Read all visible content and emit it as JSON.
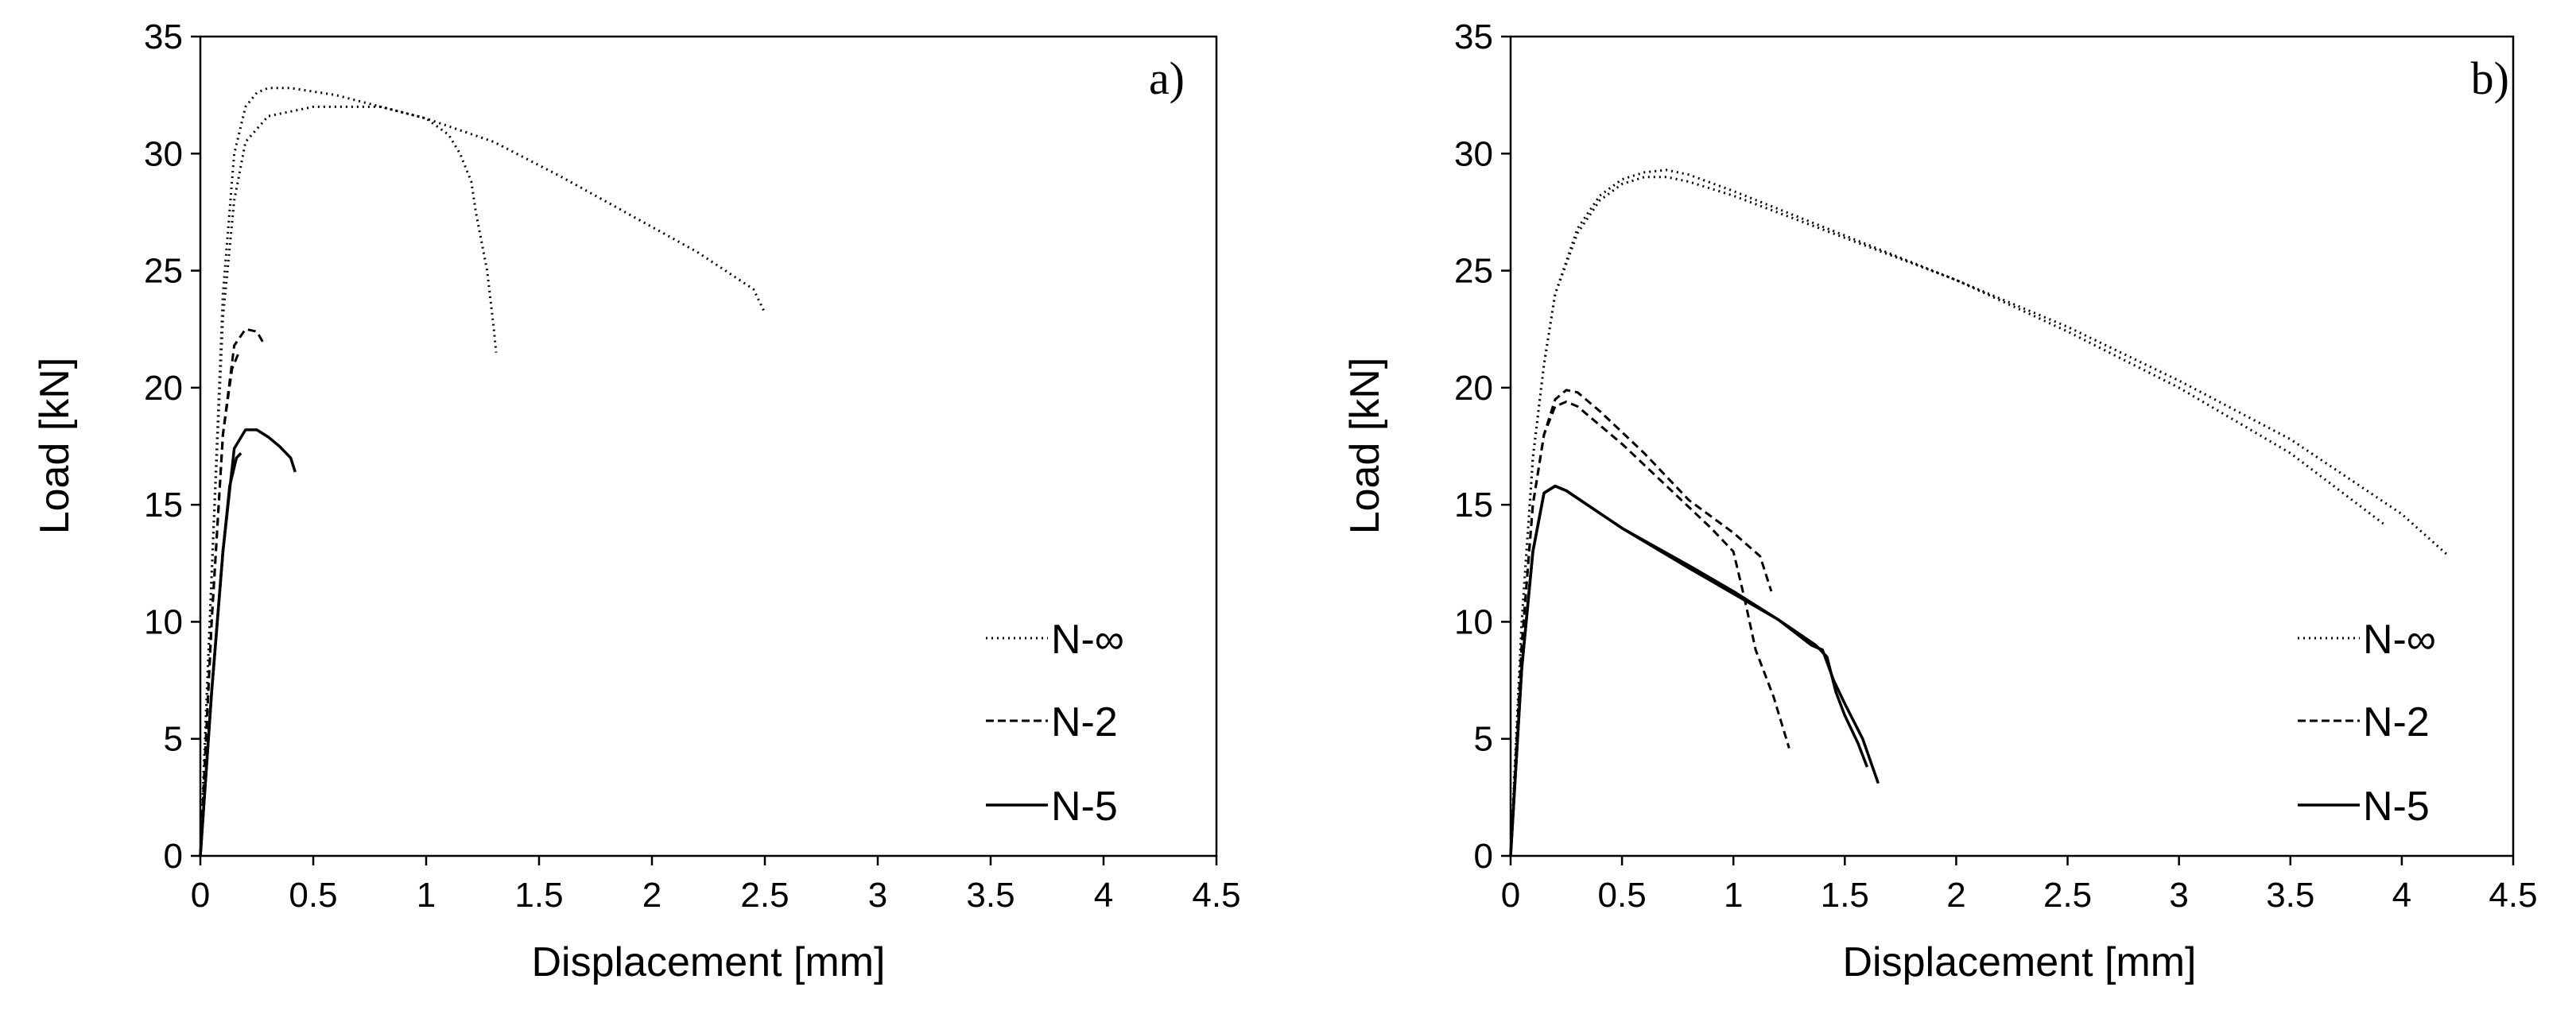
{
  "chart_data": [
    {
      "type": "line",
      "panel_label": "a)",
      "xlabel": "Displacement [mm]",
      "ylabel": "Load [kN]",
      "xlim": [
        0,
        4.5
      ],
      "ylim": [
        0,
        35
      ],
      "xticks": [
        "0",
        "0.5",
        "1",
        "1.5",
        "2",
        "2.5",
        "3",
        "3.5",
        "4",
        "4.5"
      ],
      "yticks": [
        "0",
        "5",
        "10",
        "15",
        "20",
        "25",
        "30",
        "35"
      ],
      "grid": false,
      "legend_position": "bottom-right",
      "legend": [
        {
          "label": "N-∞",
          "style": "dotted"
        },
        {
          "label": "N-2",
          "style": "dashed"
        },
        {
          "label": "N-5",
          "style": "solid"
        }
      ],
      "series": [
        {
          "name": "N-∞",
          "style": "dotted",
          "x": [
            0,
            0.05,
            0.1,
            0.15,
            0.2,
            0.25,
            0.3,
            0.4,
            0.6,
            0.8,
            1.0,
            1.3,
            1.6,
            1.9,
            2.2,
            2.45,
            2.5
          ],
          "y": [
            0,
            12,
            24,
            30,
            32,
            32.6,
            32.8,
            32.8,
            32.5,
            32.0,
            31.5,
            30.5,
            29.0,
            27.4,
            25.8,
            24.2,
            23.2
          ]
        },
        {
          "name": "N-∞",
          "style": "dotted",
          "x": [
            0,
            0.05,
            0.1,
            0.15,
            0.2,
            0.3,
            0.5,
            0.8,
            1.0,
            1.1,
            1.15,
            1.2,
            1.22,
            1.25,
            1.27,
            1.3,
            1.31
          ],
          "y": [
            0,
            12,
            23,
            28,
            30.5,
            31.6,
            32.0,
            32.0,
            31.5,
            30.8,
            30.0,
            28.8,
            27.5,
            26,
            25,
            22.5,
            21.5
          ]
        },
        {
          "name": "N-2",
          "style": "dashed",
          "x": [
            0,
            0.05,
            0.1,
            0.15,
            0.2,
            0.25,
            0.28
          ],
          "y": [
            0,
            10,
            18,
            21.8,
            22.5,
            22.4,
            21.9
          ]
        },
        {
          "name": "N-2",
          "style": "dashed",
          "x": [
            0,
            0.05,
            0.1,
            0.14,
            0.17
          ],
          "y": [
            0,
            10,
            18,
            20.8,
            21.5
          ]
        },
        {
          "name": "N-5",
          "style": "solid",
          "x": [
            0,
            0.05,
            0.1,
            0.15,
            0.2,
            0.25,
            0.3,
            0.35,
            0.4,
            0.42
          ],
          "y": [
            0,
            7,
            13,
            17.4,
            18.2,
            18.2,
            17.9,
            17.5,
            17.0,
            16.4
          ]
        },
        {
          "name": "N-5",
          "style": "solid",
          "x": [
            0,
            0.05,
            0.1,
            0.13,
            0.16,
            0.18
          ],
          "y": [
            0,
            7,
            13,
            15.8,
            17.0,
            17.2
          ]
        }
      ]
    },
    {
      "type": "line",
      "panel_label": "b)",
      "xlabel": "Displacement [mm]",
      "ylabel": "Load [kN]",
      "xlim": [
        0,
        4.5
      ],
      "ylim": [
        0,
        35
      ],
      "xticks": [
        "0",
        "0.5",
        "1",
        "1.5",
        "2",
        "2.5",
        "3",
        "3.5",
        "4",
        "4.5"
      ],
      "yticks": [
        "0",
        "5",
        "10",
        "15",
        "20",
        "25",
        "30",
        "35"
      ],
      "grid": false,
      "legend_position": "bottom-right",
      "legend": [
        {
          "label": "N-∞",
          "style": "dotted"
        },
        {
          "label": "N-2",
          "style": "dashed"
        },
        {
          "label": "N-5",
          "style": "solid"
        }
      ],
      "series": [
        {
          "name": "N-∞",
          "style": "dotted",
          "x": [
            0,
            0.05,
            0.1,
            0.15,
            0.2,
            0.3,
            0.4,
            0.5,
            0.6,
            0.7,
            0.8,
            1.0,
            1.5,
            2.0,
            2.5,
            3.0,
            3.5,
            4.0,
            4.2
          ],
          "y": [
            0,
            10,
            17,
            21,
            24,
            26.8,
            28.2,
            28.9,
            29.2,
            29.3,
            29.1,
            28.4,
            26.5,
            24.6,
            22.6,
            20.3,
            17.8,
            14.6,
            12.9
          ]
        },
        {
          "name": "N-∞",
          "style": "dotted",
          "x": [
            0,
            0.05,
            0.1,
            0.15,
            0.2,
            0.3,
            0.4,
            0.5,
            0.6,
            0.7,
            0.8,
            1.0,
            1.5,
            2.0,
            2.5,
            3.0,
            3.5,
            3.93
          ],
          "y": [
            0,
            10,
            17,
            21,
            24,
            26.6,
            28.0,
            28.7,
            29.0,
            29.0,
            28.8,
            28.2,
            26.4,
            24.6,
            22.4,
            20.0,
            17.2,
            14.1
          ]
        },
        {
          "name": "N-2",
          "style": "dashed",
          "x": [
            0,
            0.05,
            0.1,
            0.15,
            0.2,
            0.25,
            0.3,
            0.4,
            0.6,
            0.8,
            1.0,
            1.12,
            1.17
          ],
          "y": [
            0,
            9,
            15,
            18,
            19.5,
            19.9,
            19.8,
            19.0,
            17.2,
            15.2,
            13.8,
            12.8,
            11.3
          ]
        },
        {
          "name": "N-2",
          "style": "dashed",
          "x": [
            0,
            0.05,
            0.1,
            0.15,
            0.2,
            0.25,
            0.3,
            0.5,
            0.7,
            0.9,
            1.0,
            1.05,
            1.1,
            1.18,
            1.25
          ],
          "y": [
            0,
            9,
            15,
            18,
            19.2,
            19.4,
            19.2,
            17.6,
            15.8,
            14.0,
            13.0,
            11.0,
            8.8,
            6.8,
            4.6
          ]
        },
        {
          "name": "N-5",
          "style": "solid",
          "x": [
            0,
            0.05,
            0.1,
            0.15,
            0.2,
            0.25,
            0.5,
            0.8,
            1.0,
            1.2,
            1.37,
            1.42,
            1.46,
            1.5,
            1.56,
            1.6
          ],
          "y": [
            0,
            8,
            13,
            15.5,
            15.8,
            15.6,
            14.0,
            12.3,
            11.2,
            10.1,
            9.0,
            8.5,
            7.0,
            6.0,
            4.8,
            3.8
          ]
        },
        {
          "name": "N-5",
          "style": "solid",
          "x": [
            0,
            0.05,
            0.1,
            0.15,
            0.2,
            0.25,
            0.5,
            0.8,
            1.0,
            1.2,
            1.35,
            1.4,
            1.45,
            1.5,
            1.58,
            1.65
          ],
          "y": [
            0,
            8,
            13,
            15.5,
            15.8,
            15.6,
            14.0,
            12.4,
            11.3,
            10.1,
            9.0,
            8.8,
            7.5,
            6.5,
            5.0,
            3.1
          ]
        }
      ]
    }
  ]
}
